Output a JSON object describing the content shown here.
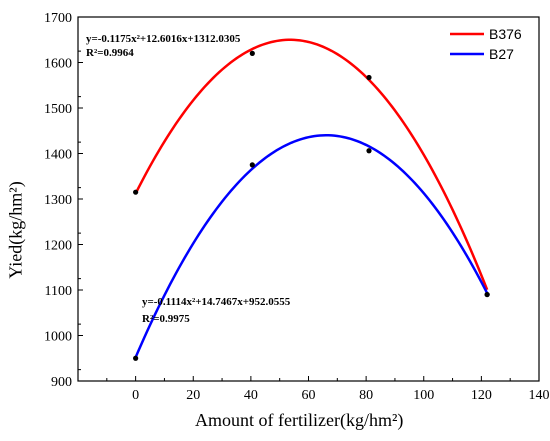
{
  "chart_data": {
    "type": "scatter",
    "xlabel": "Amount of fertilizer(kg/hm²)",
    "ylabel": "Yied(kg/hm²)",
    "xlim": [
      -20,
      140
    ],
    "ylim": [
      900,
      1700
    ],
    "xticks": [
      0,
      20,
      40,
      60,
      80,
      100,
      120,
      140
    ],
    "yticks": [
      900,
      1000,
      1100,
      1200,
      1300,
      1400,
      1500,
      1600,
      1700
    ],
    "legend_position": "top-right",
    "series": [
      {
        "name": "B376",
        "color": "#ff0000",
        "fit": {
          "a": -0.1175,
          "b": 12.6016,
          "c": 1312.0305
        },
        "equation": "y=-0.1175x²+12.6016x+1312.0305",
        "r2": "R²=0.9964",
        "points": [
          [
            0,
            1315
          ],
          [
            40.5,
            1620
          ],
          [
            81,
            1567
          ],
          [
            122,
            1090
          ]
        ]
      },
      {
        "name": "B27",
        "color": "#0000ff",
        "fit": {
          "a": -0.1114,
          "b": 14.7467,
          "c": 952.0555
        },
        "equation": "y=-0.1114x²+14.7467x+952.0555",
        "r2": "R²=0.9975",
        "points": [
          [
            0,
            950
          ],
          [
            40.5,
            1375
          ],
          [
            81,
            1406
          ],
          [
            122,
            1090
          ]
        ]
      }
    ]
  }
}
